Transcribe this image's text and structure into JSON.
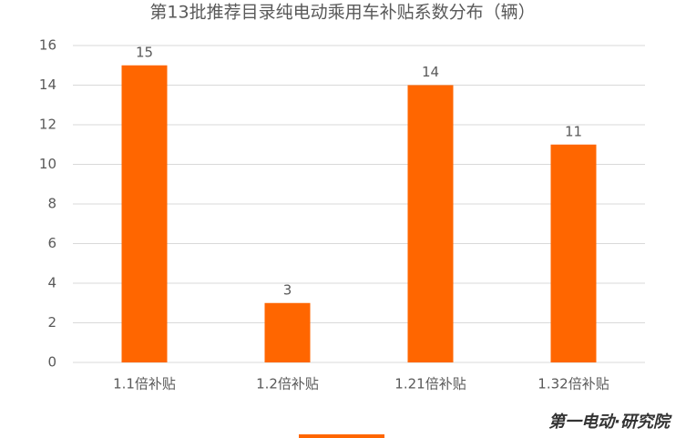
{
  "chart_data": {
    "type": "bar",
    "title": "第13批推荐目录纯电动乘用车补贴系数分布（辆）",
    "categories": [
      "1.1倍补贴",
      "1.2倍补贴",
      "1.21倍补贴",
      "1.32倍补贴"
    ],
    "values": [
      15,
      3,
      14,
      11
    ],
    "color": "#ff6600",
    "ylim": [
      0,
      16
    ],
    "yticks": [
      0,
      2,
      4,
      6,
      8,
      10,
      12,
      14,
      16
    ],
    "grid": true,
    "watermark": "第一电动·研究院"
  }
}
